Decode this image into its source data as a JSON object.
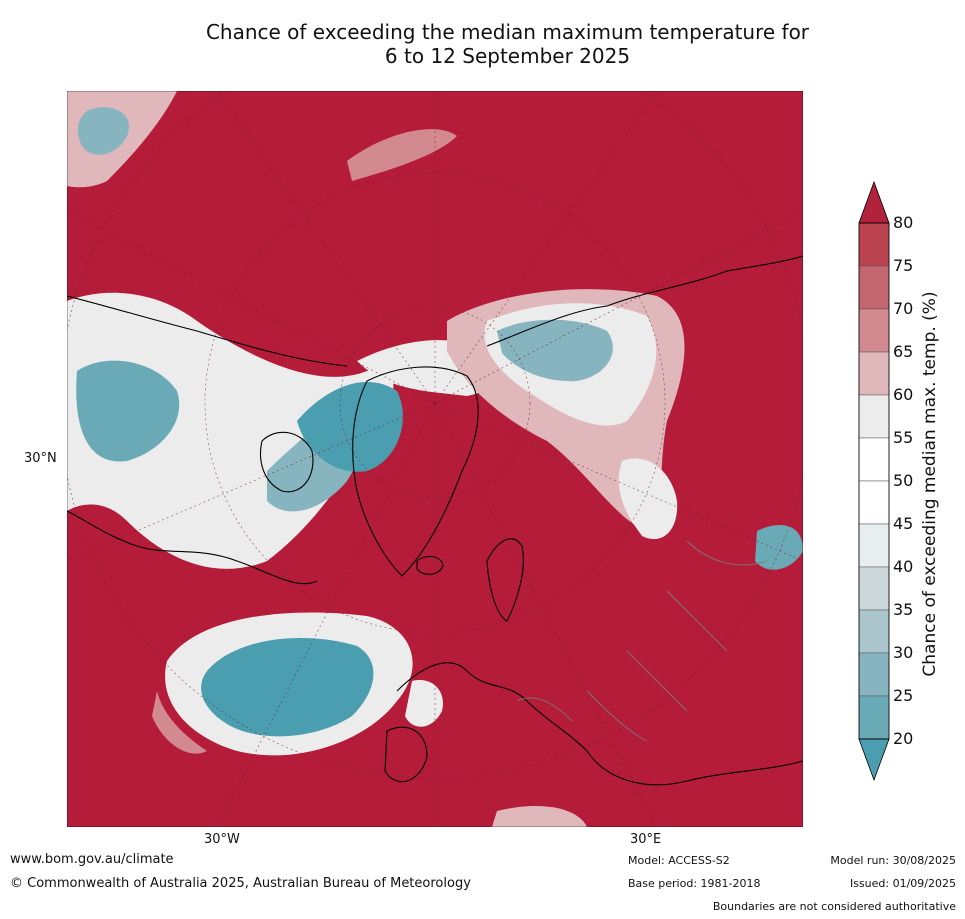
{
  "title_line1": "Chance of exceeding the median maximum temperature for",
  "title_line2": "6 to 12 September 2025",
  "map": {
    "lat_label": "30°N",
    "lon_labels": [
      "30°W",
      "30°E"
    ],
    "ocean_color": "#b41c3a",
    "cool_color": "#4aa0b2",
    "neutral_color": "#f2f2f2"
  },
  "colorbar": {
    "label": "Chance of exceeding median max. temp. (%)",
    "ticks": [
      "80",
      "75",
      "70",
      "65",
      "60",
      "55",
      "50",
      "45",
      "40",
      "35",
      "30",
      "25",
      "20"
    ],
    "colors": [
      "#b3223c",
      "#bb4350",
      "#c4666f",
      "#d28a90",
      "#e0b7ba",
      "#ececec",
      "#ffffff",
      "#ffffff",
      "#e8edef",
      "#cdd8db",
      "#aac6cc",
      "#86b5c0",
      "#6aaab6",
      "#4a9eaf"
    ]
  },
  "footer": {
    "website": "www.bom.gov.au/climate",
    "copyright": "© Commonwealth of Australia 2025, Australian Bureau of Meteorology",
    "model": "Model: ACCESS-S2",
    "base_period": "Base period: 1981-2018",
    "model_run": "Model run: 30/08/2025",
    "issued": "Issued: 01/09/2025",
    "disclaimer": "Boundaries are not considered authoritative"
  }
}
